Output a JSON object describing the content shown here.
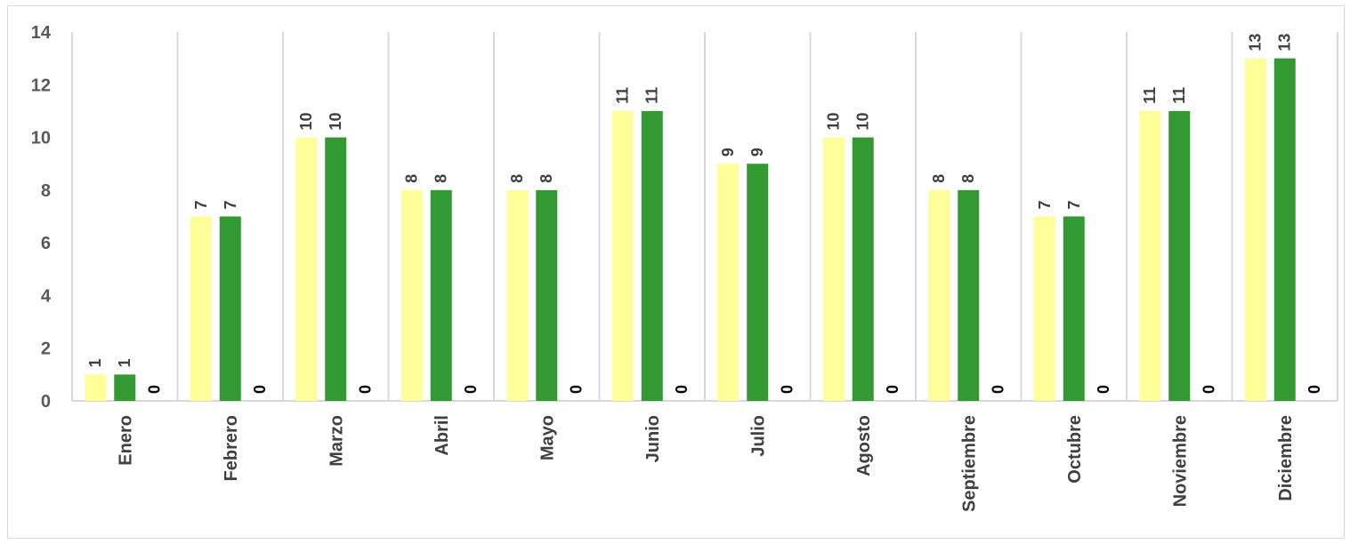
{
  "chart_data": {
    "type": "bar",
    "categories": [
      "Enero",
      "Febrero",
      "Marzo",
      "Abril",
      "Mayo",
      "Junio",
      "Julio",
      "Agosto",
      "Septiembre",
      "Octubre",
      "Noviembre",
      "Diciembre"
    ],
    "series": [
      {
        "values": [
          1,
          7,
          10,
          8,
          8,
          11,
          9,
          10,
          8,
          7,
          11,
          13
        ],
        "color": "#ffff99"
      },
      {
        "values": [
          1,
          7,
          10,
          8,
          8,
          11,
          9,
          10,
          8,
          7,
          11,
          13
        ],
        "color": "#339933"
      },
      {
        "values": [
          0,
          0,
          0,
          0,
          0,
          0,
          0,
          0,
          0,
          0,
          0,
          0
        ],
        "color": "#000000"
      }
    ],
    "ylim": [
      0,
      14
    ],
    "yticks": [
      0,
      2,
      4,
      6,
      8,
      10,
      12,
      14
    ],
    "grid": "vertical category separators",
    "data_labels": "rotated, above bars",
    "category_labels": "rotated vertical"
  }
}
